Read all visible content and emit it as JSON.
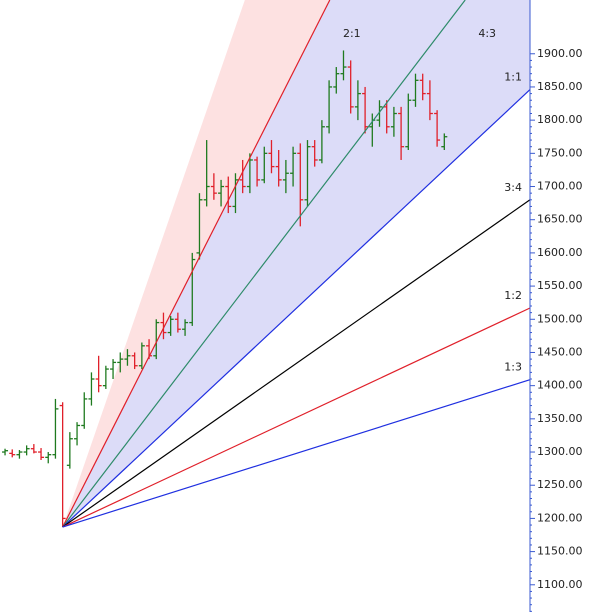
{
  "chart_data": {
    "type": "ohlc",
    "up_color": "#1f7a1f",
    "down_color": "#e0202a",
    "xlim": [
      -0.7,
      72.9
    ],
    "ylim": [
      1059,
      1981
    ],
    "yticks": [
      {
        "value": 1100,
        "label": "1100.00"
      },
      {
        "value": 1150,
        "label": "1150.00"
      },
      {
        "value": 1200,
        "label": "1200.00"
      },
      {
        "value": 1250,
        "label": "1250.00"
      },
      {
        "value": 1300,
        "label": "1300.00"
      },
      {
        "value": 1350,
        "label": "1350.00"
      },
      {
        "value": 1400,
        "label": "1400.00"
      },
      {
        "value": 1450,
        "label": "1450.00"
      },
      {
        "value": 1500,
        "label": "1500.00"
      },
      {
        "value": 1550,
        "label": "1550.00"
      },
      {
        "value": 1600,
        "label": "1600.00"
      },
      {
        "value": 1650,
        "label": "1650.00"
      },
      {
        "value": 1700,
        "label": "1700.00"
      },
      {
        "value": 1750,
        "label": "1750.00"
      },
      {
        "value": 1800,
        "label": "1800.00"
      },
      {
        "value": 1850,
        "label": "1850.00"
      },
      {
        "value": 1900,
        "label": "1900.00"
      }
    ],
    "bars": {
      "open": [
        1300,
        1298,
        1296,
        1300,
        1305,
        1300,
        1292,
        1296,
        1370,
        1280,
        1320,
        1340,
        1380,
        1410,
        1400,
        1425,
        1435,
        1440,
        1445,
        1430,
        1460,
        1445,
        1495,
        1480,
        1500,
        1485,
        1495,
        1600,
        1680,
        1700,
        1690,
        1700,
        1670,
        1710,
        1700,
        1740,
        1710,
        1750,
        1730,
        1710,
        1720,
        1750,
        1680,
        1760,
        1740,
        1790,
        1850,
        1870,
        1880,
        1820,
        1840,
        1790,
        1800,
        1820,
        1790,
        1810,
        1760,
        1830,
        1860,
        1840,
        1810,
        1760
      ],
      "high": [
        1305,
        1304,
        1303,
        1310,
        1312,
        1306,
        1300,
        1380,
        1375,
        1330,
        1345,
        1390,
        1420,
        1445,
        1430,
        1440,
        1450,
        1455,
        1450,
        1465,
        1470,
        1500,
        1510,
        1505,
        1510,
        1500,
        1600,
        1690,
        1770,
        1720,
        1710,
        1715,
        1720,
        1740,
        1750,
        1745,
        1760,
        1770,
        1755,
        1740,
        1760,
        1765,
        1770,
        1770,
        1800,
        1860,
        1880,
        1905,
        1890,
        1860,
        1850,
        1810,
        1830,
        1830,
        1820,
        1820,
        1840,
        1870,
        1870,
        1860,
        1815,
        1780
      ],
      "low": [
        1295,
        1292,
        1290,
        1295,
        1298,
        1288,
        1283,
        1290,
        1187,
        1275,
        1310,
        1335,
        1370,
        1390,
        1395,
        1410,
        1420,
        1430,
        1425,
        1425,
        1440,
        1440,
        1470,
        1475,
        1480,
        1475,
        1490,
        1590,
        1670,
        1680,
        1670,
        1660,
        1660,
        1690,
        1690,
        1700,
        1705,
        1720,
        1700,
        1690,
        1700,
        1640,
        1670,
        1730,
        1735,
        1780,
        1840,
        1860,
        1810,
        1800,
        1780,
        1760,
        1790,
        1780,
        1775,
        1740,
        1755,
        1820,
        1830,
        1800,
        1760,
        1755
      ],
      "close": [
        1302,
        1296,
        1300,
        1305,
        1300,
        1292,
        1296,
        1365,
        1200,
        1320,
        1340,
        1380,
        1410,
        1400,
        1425,
        1435,
        1440,
        1445,
        1430,
        1460,
        1445,
        1495,
        1480,
        1500,
        1485,
        1495,
        1590,
        1680,
        1700,
        1690,
        1700,
        1670,
        1710,
        1700,
        1740,
        1710,
        1750,
        1730,
        1710,
        1720,
        1750,
        1680,
        1760,
        1740,
        1790,
        1850,
        1870,
        1880,
        1820,
        1840,
        1790,
        1800,
        1820,
        1790,
        1810,
        1760,
        1830,
        1860,
        1840,
        1810,
        1770,
        1775
      ]
    },
    "fan": {
      "shade_edge": {
        "start": [
          8,
          1187
        ],
        "end": [
          33.3,
          1981
        ],
        "color": "#fde1e1"
      },
      "shade_color": "#dcdcf8",
      "lines": [
        {
          "name": "2:1",
          "color": "#e0202a",
          "start": [
            8,
            1187
          ],
          "end": [
            45.1,
            1981
          ]
        },
        {
          "name": "4:3",
          "color": "#2e8b6a",
          "start": [
            8,
            1187
          ],
          "end": [
            63.9,
            1981
          ]
        },
        {
          "name": "1:1",
          "color": "#1f2fe0",
          "start": [
            8,
            1187
          ],
          "end": [
            72.9,
            1846
          ]
        },
        {
          "name": "3:4",
          "color": "#000000",
          "start": [
            8,
            1187
          ],
          "end": [
            72.9,
            1680
          ]
        },
        {
          "name": "1:2",
          "color": "#e0202a",
          "start": [
            8,
            1187
          ],
          "end": [
            72.9,
            1517
          ]
        },
        {
          "name": "1:3",
          "color": "#1f2fe0",
          "start": [
            8,
            1187
          ],
          "end": [
            72.9,
            1409
          ]
        }
      ]
    }
  }
}
